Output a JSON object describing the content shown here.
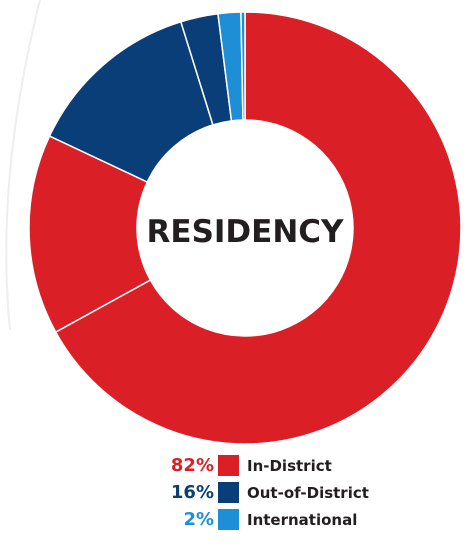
{
  "chart_data": {
    "type": "pie",
    "title": "RESIDENCY",
    "labels": [
      "In-District",
      "Out-of-District",
      "International"
    ],
    "values": [
      82,
      16,
      2
    ],
    "value_labels": [
      "82%",
      "16%",
      "2%"
    ],
    "colors": [
      "#db1f26",
      "#0a3e79",
      "#1e8fd6"
    ],
    "slices": [
      {
        "category": "In-District",
        "value": 67,
        "color": "#db1f26"
      },
      {
        "category": "In-District",
        "value": 15,
        "color": "#db1f26"
      },
      {
        "category": "Out-of-District",
        "value": 13.2,
        "color": "#0a3e79"
      },
      {
        "category": "Out-of-District",
        "value": 2.8,
        "color": "#0a3e79"
      },
      {
        "category": "International",
        "value": 1.7,
        "color": "#1e8fd6"
      },
      {
        "category": "International",
        "value": 0.3,
        "color": "#1e8fd6"
      }
    ],
    "donut": true,
    "legend_position": "bottom-center"
  },
  "legend": {
    "items": [
      {
        "pct": "82%",
        "label": "In-District",
        "color": "#db1f26"
      },
      {
        "pct": "16%",
        "label": "Out-of-District",
        "color": "#0a3e79"
      },
      {
        "pct": "2%",
        "label": "International",
        "color": "#1e8fd6"
      }
    ]
  }
}
